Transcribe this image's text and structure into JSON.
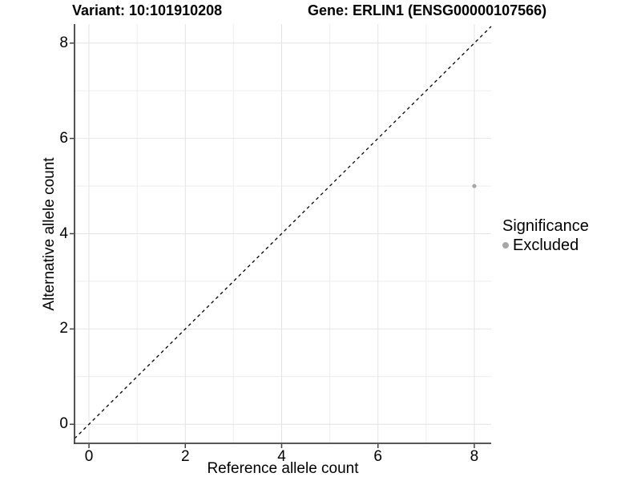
{
  "header": {
    "variant_title": "Variant: 10:101910208",
    "gene_title": "Gene: ERLIN1 (ENSG00000107566)"
  },
  "axes": {
    "x_label": "Reference allele count",
    "y_label": "Alternative allele count"
  },
  "legend": {
    "title": "Significance",
    "items": [
      {
        "label": "Excluded",
        "color": "#a6a6a6"
      }
    ]
  },
  "chart_data": {
    "type": "scatter",
    "titles": [
      "Variant: 10:101910208",
      "Gene: ERLIN1 (ENSG00000107566)"
    ],
    "xlabel": "Reference allele count",
    "ylabel": "Alternative allele count",
    "xlim": [
      -0.3,
      8.35
    ],
    "ylim": [
      -0.4,
      8.4
    ],
    "x_ticks": [
      0,
      2,
      4,
      6,
      8
    ],
    "y_ticks": [
      0,
      2,
      4,
      6,
      8
    ],
    "x_minor_ticks": [
      1,
      3,
      5,
      7
    ],
    "y_minor_ticks": [
      1,
      3,
      5,
      7
    ],
    "grid": "major and minor gridlines on white panel",
    "legend_position": "right",
    "series": [
      {
        "name": "Excluded",
        "color": "#a6a6a6",
        "points": [
          {
            "x": 8,
            "y": 5
          }
        ]
      }
    ],
    "reference_line": {
      "kind": "identity y=x",
      "style": "dashed",
      "color": "#000000"
    }
  },
  "colors": {
    "background": "#ffffff",
    "grid_major": "#e4e4e4",
    "grid_minor": "#eeeeee",
    "axis_line": "#404040",
    "point": "#a6a6a6",
    "text": "#000000"
  }
}
